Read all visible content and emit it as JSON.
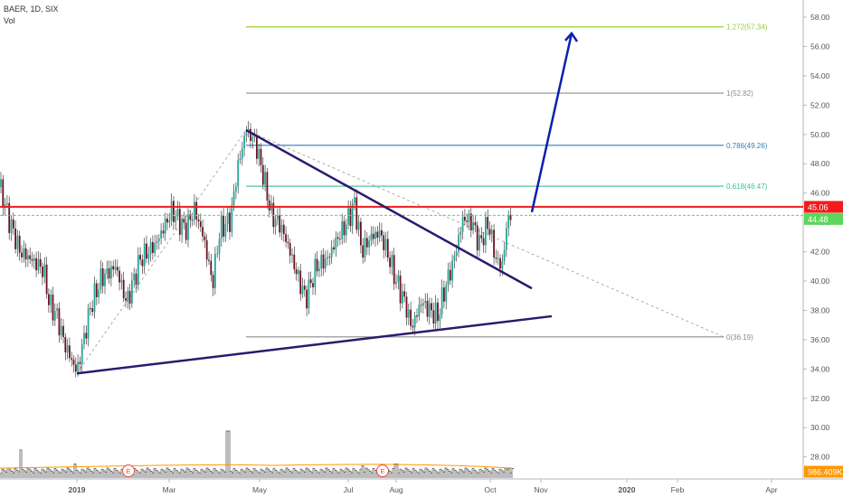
{
  "legend": {
    "symbol": "BAER, 1D, SIX",
    "volume_label": "Vol"
  },
  "colors": {
    "up": "#26a69a",
    "down": "#6b1320",
    "wick": "#222222",
    "trend": "#2b1a6e",
    "arrow": "#0b1fb0",
    "resistance": "#f21c1c",
    "last_price": "#5cd65c",
    "fib_0": "#8c8c8c",
    "fib_618": "#39c28c",
    "fib_786": "#2e7fb8",
    "fib_1": "#8c8c8c",
    "fib_1272": "#9acd32",
    "volume_line": "#ff9800",
    "grid_axis": "#b0b6bf"
  },
  "chart_data": {
    "type": "candlestick",
    "symbol": "BAER",
    "interval": "1D",
    "exchange": "SIX",
    "x_axis": {
      "ticks": [
        "2019",
        "Mar",
        "May",
        "Jul",
        "Aug",
        "Oct",
        "Nov",
        "2020",
        "Feb",
        "Apr"
      ]
    },
    "y_axis": {
      "range": [
        26.5,
        59.2
      ],
      "ticks": [
        "28.00",
        "30.00",
        "32.00",
        "34.00",
        "36.00",
        "38.00",
        "40.00",
        "42.00",
        "44.00",
        "46.00",
        "48.00",
        "50.00",
        "52.00",
        "54.00",
        "56.00",
        "58.00"
      ]
    },
    "price_path": [
      [
        0,
        46.4
      ],
      [
        10,
        44.2
      ],
      [
        22,
        42.0
      ],
      [
        32,
        41.6
      ],
      [
        48,
        40.8
      ],
      [
        55,
        38.3
      ],
      [
        62,
        37.8
      ],
      [
        72,
        35.6
      ],
      [
        85,
        33.8
      ],
      [
        100,
        38.2
      ],
      [
        112,
        40.2
      ],
      [
        128,
        41.0
      ],
      [
        140,
        38.5
      ],
      [
        155,
        41.5
      ],
      [
        172,
        42.5
      ],
      [
        190,
        44.8
      ],
      [
        205,
        43.5
      ],
      [
        215,
        44.9
      ],
      [
        225,
        43.0
      ],
      [
        235,
        39.8
      ],
      [
        243,
        43.5
      ],
      [
        255,
        44.2
      ],
      [
        262,
        47.5
      ],
      [
        272,
        50.3
      ],
      [
        282,
        49.5
      ],
      [
        290,
        47.5
      ],
      [
        300,
        44.5
      ],
      [
        310,
        43.8
      ],
      [
        318,
        42.5
      ],
      [
        328,
        40.5
      ],
      [
        338,
        38.8
      ],
      [
        350,
        41.0
      ],
      [
        362,
        41.5
      ],
      [
        372,
        42.8
      ],
      [
        382,
        43.8
      ],
      [
        392,
        45.3
      ],
      [
        400,
        42.0
      ],
      [
        410,
        43.0
      ],
      [
        420,
        43.3
      ],
      [
        428,
        42.0
      ],
      [
        438,
        40.0
      ],
      [
        448,
        38.5
      ],
      [
        455,
        36.8
      ],
      [
        466,
        38.6
      ],
      [
        475,
        38.0
      ],
      [
        484,
        37.6
      ],
      [
        492,
        39.5
      ],
      [
        502,
        41.5
      ],
      [
        512,
        44.3
      ],
      [
        522,
        44.0
      ],
      [
        530,
        42.5
      ],
      [
        540,
        44.0
      ],
      [
        548,
        41.5
      ],
      [
        555,
        41.0
      ],
      [
        562,
        44.5
      ],
      [
        566,
        44.48
      ]
    ],
    "volume_baseline": 986.409,
    "volume_unit": "K",
    "volume_spikes": [
      {
        "x": 22,
        "v": 6
      },
      {
        "x": 82,
        "v": 3
      },
      {
        "x": 251,
        "v": 10
      },
      {
        "x": 400,
        "v": 2.6
      },
      {
        "x": 437,
        "v": 3
      },
      {
        "x": 562,
        "v": 2
      }
    ],
    "earnings_markers": [
      {
        "x": 142,
        "label": "E"
      },
      {
        "x": 423,
        "label": "E"
      }
    ],
    "annotations": {
      "resistance_level": 45.06,
      "last_price": 44.48,
      "fibonacci": [
        {
          "ratio": "0",
          "price": 36.19,
          "label": "0(36.19)"
        },
        {
          "ratio": "0.618",
          "price": 46.47,
          "label": "0.618(46.47)"
        },
        {
          "ratio": "0.786",
          "price": 49.26,
          "label": "0.786(49.26)"
        },
        {
          "ratio": "1",
          "price": 52.82,
          "label": "1(52.82)"
        },
        {
          "ratio": "1.272",
          "price": 57.34,
          "label": "1.272(57.34)"
        }
      ],
      "upper_trendline": [
        [
          272,
          50.3
        ],
        [
          588,
          39.5
        ]
      ],
      "lower_trendline": [
        [
          85,
          33.7
        ],
        [
          610,
          37.6
        ]
      ],
      "projection_arrow": [
        [
          588,
          44.7
        ],
        [
          632,
          56.9
        ]
      ],
      "fib_anchor_line": [
        [
          85,
          33.7
        ],
        [
          272,
          50.3
        ],
        [
          800,
          36.19
        ]
      ]
    },
    "price_labels": [
      "45.06",
      "44.48"
    ],
    "volume_label": "986.409K"
  }
}
